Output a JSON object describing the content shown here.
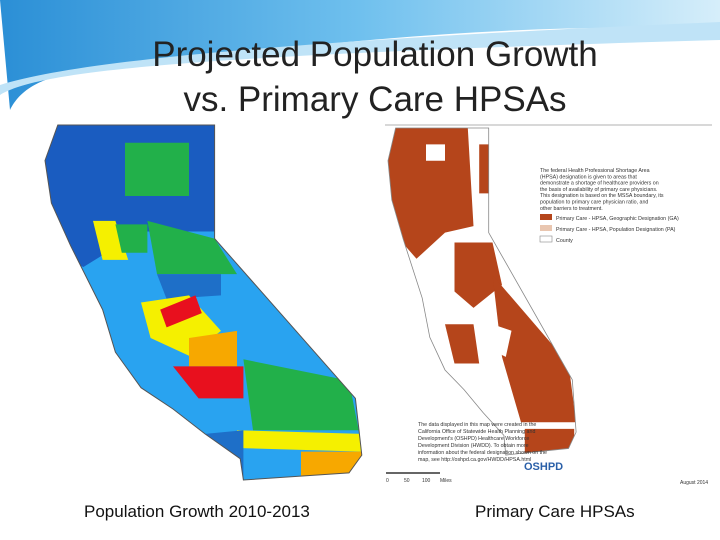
{
  "header": {
    "title_lines": [
      "Projected Population Growth",
      "vs. Primary Care HPSAs"
    ]
  },
  "left_map": {
    "caption": "Population Growth 2010-2013"
  },
  "right_map": {
    "caption": "Primary Care HPSAs",
    "description": [
      "The federal Health Professional Shortage Area",
      "(HPSA) designation is given to areas that",
      "demonstrate a shortage of healthcare providers on",
      "the basis of availability of primary care physicians.",
      "This designation is based on the MSSA boundary, its",
      "population to primary care physician ratio, and",
      "other barriers to treatment."
    ],
    "legend": [
      "Primary Care - HPSA, Geographic Designation (GA)",
      "Primary Care - HPSA, Population Designation (PA)",
      "County"
    ],
    "note": [
      "The data displayed in this map were created in the",
      "California Office of Statewide Health Planning and",
      "Development's (OSHPD) Healthcare Workforce",
      "Development Division (HWDD). To obtain more",
      "information about the federal designation shown on the",
      "map, see http://oshpd.ca.gov/HWDD/HPSA.html"
    ],
    "scale": [
      "0",
      "50",
      "100",
      "Miles"
    ],
    "logo": "OSHPD",
    "date": "August 2014"
  }
}
